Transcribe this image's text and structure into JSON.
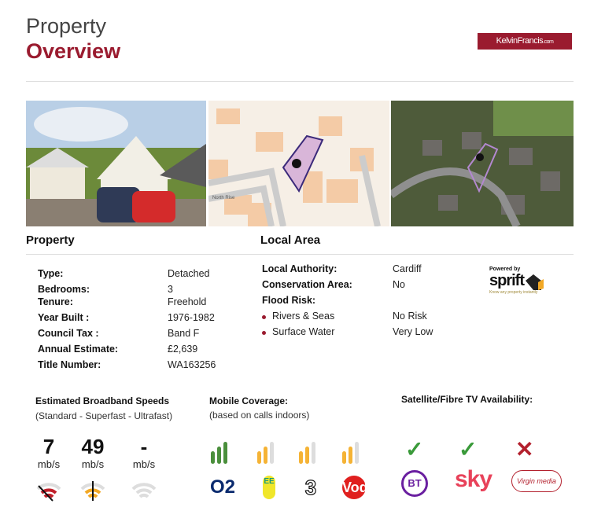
{
  "header": {
    "title_line1": "Property",
    "title_line2": "Overview",
    "brand": "KelvinFrancis",
    "brand_suffix": ".com"
  },
  "images": {
    "map_street_1": "North Rise",
    "map_street_2": "North Rise",
    "map_street_3": "North Rise"
  },
  "property": {
    "heading": "Property",
    "rows": [
      {
        "label": "Type:",
        "value": "Detached"
      },
      {
        "label": "Bedrooms:",
        "value": "3"
      },
      {
        "label": "Tenure:",
        "value": "Freehold"
      },
      {
        "label": "Year Built :",
        "value": "1976-1982"
      },
      {
        "label": "Council Tax :",
        "value": "Band F"
      },
      {
        "label": "Annual Estimate:",
        "value": "£2,639"
      },
      {
        "label": "Title Number:",
        "value": "WA163256"
      }
    ]
  },
  "local_area": {
    "heading": "Local Area",
    "rows": [
      {
        "label": "Local Authority:",
        "value": "Cardiff"
      },
      {
        "label": "Conservation Area:",
        "value": "No"
      },
      {
        "label": "Flood Risk:",
        "value": ""
      }
    ],
    "flood": [
      {
        "label": "Rivers & Seas",
        "value": "No Risk"
      },
      {
        "label": "Surface Water",
        "value": "Very Low"
      }
    ],
    "powered_by": "Powered by",
    "powered_brand": "sprift",
    "powered_tagline": "Know any property instantly"
  },
  "broadband": {
    "title": "Estimated Broadband Speeds",
    "subtitle": "(Standard - Superfast - Ultrafast)",
    "speeds": [
      {
        "value": "7",
        "unit": "mb/s",
        "color": "#c0202a"
      },
      {
        "value": "49",
        "unit": "mb/s",
        "color": "#f2a825"
      },
      {
        "value": "-",
        "unit": "mb/s",
        "color": "#ddd"
      }
    ]
  },
  "mobile": {
    "title": "Mobile Coverage:",
    "subtitle": "(based on calls indoors)",
    "operators": [
      {
        "name": "O2",
        "bars": 3,
        "color": "#4a8f3c"
      },
      {
        "name": "EE",
        "bars": 2,
        "color": "#f5b335"
      },
      {
        "name": "3",
        "bars": 2,
        "color": "#f5b335"
      },
      {
        "name": "Vodafone",
        "bars": 2,
        "color": "#f5b335"
      }
    ]
  },
  "tv": {
    "title": "Satellite/Fibre TV Availability:",
    "providers": [
      {
        "name": "BT",
        "available": true
      },
      {
        "name": "sky",
        "available": true
      },
      {
        "name": "Virgin media",
        "available": false
      }
    ],
    "check": "✓",
    "cross": "✕"
  },
  "colors": {
    "brand": "#9a1b2f",
    "green": "#3a9a3a",
    "red": "#b3202d"
  }
}
